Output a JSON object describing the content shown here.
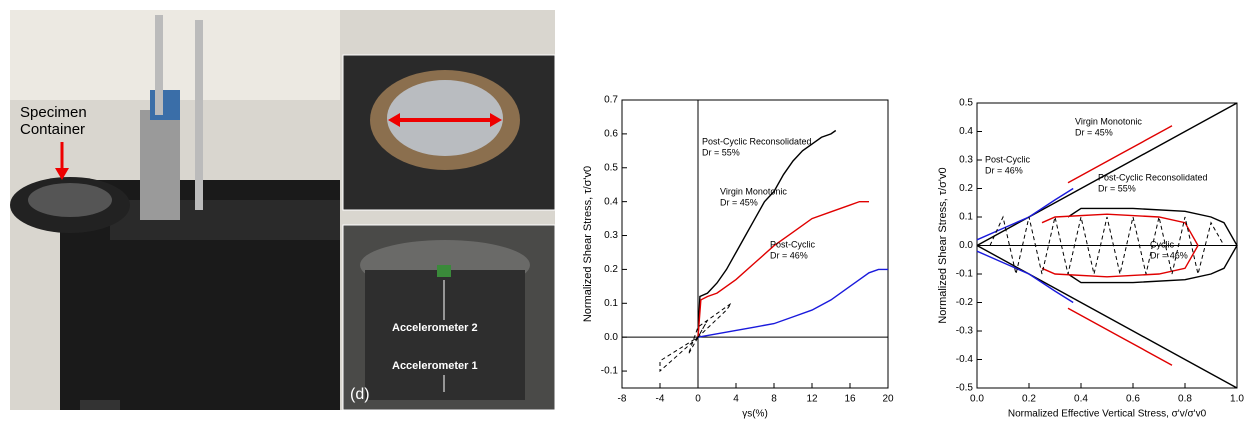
{
  "photos": {
    "labels": {
      "container": "Specimen Container",
      "acc2": "Accelerometer 2",
      "acc1": "Accelerometer 1",
      "panel": "(d)"
    }
  },
  "chart_data": [
    {
      "type": "line",
      "ylabel": "Normalized Shear Stress, τ/σ'v0",
      "xlabel": "γs(%)",
      "xlim": [
        -8,
        20
      ],
      "xticks": [
        -8,
        -4,
        0,
        4,
        8,
        12,
        16,
        20
      ],
      "ylim": [
        -0.15,
        0.7
      ],
      "yticks": [
        -0.1,
        {
          "value": 0,
          "label": "0.0"
        },
        0.1,
        0.2,
        0.3,
        0.4,
        0.5,
        0.6,
        0.7
      ],
      "annotations": [
        {
          "text": "Post-Cyclic Reconsolidated",
          "sub": "Dr = 55%"
        },
        {
          "text": "Virgin Monotonic",
          "sub": "Dr = 45%"
        },
        {
          "text": "Post-Cyclic",
          "sub": "Dr = 46%"
        }
      ],
      "series": [
        {
          "color": "#000000",
          "x": [
            0,
            0.2,
            1,
            2,
            3,
            4,
            5,
            6,
            7,
            8,
            9,
            10,
            11,
            12,
            13,
            14,
            14.5
          ],
          "values": [
            0,
            0.12,
            0.13,
            0.16,
            0.2,
            0.25,
            0.3,
            0.35,
            0.4,
            0.43,
            0.48,
            0.52,
            0.55,
            0.57,
            0.59,
            0.6,
            0.61
          ]
        },
        {
          "color": "#e00000",
          "x": [
            0,
            0.3,
            1,
            2,
            4,
            6,
            8,
            10,
            12,
            14,
            16,
            17,
            18
          ],
          "values": [
            0,
            0.11,
            0.12,
            0.13,
            0.17,
            0.22,
            0.27,
            0.31,
            0.35,
            0.37,
            0.39,
            0.4,
            0.4
          ]
        },
        {
          "color": "#1a1adc",
          "x": [
            0,
            2,
            4,
            6,
            8,
            10,
            12,
            14,
            16,
            17,
            18,
            19,
            20
          ],
          "values": [
            0,
            0.01,
            0.02,
            0.03,
            0.04,
            0.06,
            0.08,
            0.11,
            0.15,
            0.17,
            0.19,
            0.2,
            0.2
          ]
        },
        {
          "color": "#000000",
          "dash": true,
          "x": [
            0,
            -2,
            -4,
            -4,
            0,
            3,
            3.5,
            0,
            -1,
            0,
            1,
            0
          ],
          "values": [
            0,
            -0.05,
            -0.1,
            -0.07,
            0,
            0.08,
            0.1,
            0.03,
            -0.05,
            0,
            0.05,
            0
          ]
        }
      ]
    },
    {
      "type": "line",
      "ylabel": "Normalized Shear Stress, τ/σ'v0",
      "xlabel": "Normalized Effective Vertical Stress, σ'v/σ'v0",
      "xlim": [
        0,
        1
      ],
      "xticks": [
        {
          "value": 0,
          "label": "0.0"
        },
        0.2,
        0.4,
        0.6,
        0.8,
        {
          "value": 1,
          "label": "1.0"
        }
      ],
      "ylim": [
        -0.5,
        0.5
      ],
      "yticks": [
        -0.5,
        -0.4,
        -0.3,
        -0.2,
        -0.1,
        {
          "value": 0,
          "label": "0.0"
        },
        0.1,
        0.2,
        0.3,
        0.4,
        0.5
      ],
      "annotations": [
        {
          "text": "Post-Cyclic",
          "sub": "Dr = 46%"
        },
        {
          "text": "Virgin Monotonic",
          "sub": "Dr = 45%"
        },
        {
          "text": "Post-Cyclic Reconsolidated",
          "sub": "Dr = 55%"
        },
        {
          "text": "Cyclic",
          "sub": "Dr = 46%"
        }
      ],
      "series": [
        {
          "color": "#000000",
          "x": [
            0,
            0.2,
            0.4,
            0.6,
            0.8,
            0.9,
            1
          ],
          "values": [
            0,
            0.1,
            0.2,
            0.3,
            0.4,
            0.45,
            0.5
          ]
        },
        {
          "color": "#000000",
          "x": [
            0,
            0.2,
            0.4,
            0.6,
            0.8,
            0.9,
            1
          ],
          "values": [
            0,
            -0.1,
            -0.2,
            -0.3,
            -0.4,
            -0.45,
            -0.5
          ]
        },
        {
          "color": "#000000",
          "x": [
            0.35,
            0.4,
            0.6,
            0.8,
            0.9,
            0.95,
            1,
            0.95,
            0.9,
            0.8,
            0.6,
            0.4,
            0.35
          ],
          "values": [
            0.1,
            0.13,
            0.13,
            0.12,
            0.1,
            0.08,
            0,
            -0.08,
            -0.1,
            -0.12,
            -0.13,
            -0.13,
            -0.1
          ]
        },
        {
          "color": "#e00000",
          "x": [
            0.35,
            0.45,
            0.55,
            0.65,
            0.75
          ],
          "values": [
            0.22,
            0.27,
            0.32,
            0.37,
            0.42
          ]
        },
        {
          "color": "#e00000",
          "x": [
            0.35,
            0.45,
            0.55,
            0.65,
            0.75
          ],
          "values": [
            -0.22,
            -0.27,
            -0.32,
            -0.37,
            -0.42
          ]
        },
        {
          "color": "#e00000",
          "x": [
            0.25,
            0.3,
            0.5,
            0.7,
            0.8,
            0.85,
            0.8,
            0.7,
            0.5,
            0.3,
            0.25
          ],
          "values": [
            0.08,
            0.1,
            0.11,
            0.1,
            0.08,
            0,
            -0.08,
            -0.1,
            -0.11,
            -0.1,
            -0.08
          ]
        },
        {
          "color": "#1a1adc",
          "x": [
            0,
            0.1,
            0.2,
            0.3,
            0.37
          ],
          "values": [
            0.02,
            0.06,
            0.1,
            0.16,
            0.2
          ]
        },
        {
          "color": "#1a1adc",
          "x": [
            0,
            0.1,
            0.2,
            0.3,
            0.37
          ],
          "values": [
            -0.02,
            -0.06,
            -0.1,
            -0.16,
            -0.2
          ]
        },
        {
          "color": "#000000",
          "dash": true,
          "x": [
            0.05,
            0.1,
            0.15,
            0.2,
            0.25,
            0.3,
            0.35,
            0.4,
            0.45,
            0.5,
            0.55,
            0.6,
            0.65,
            0.7,
            0.75,
            0.8,
            0.85,
            0.9,
            0.95
          ],
          "values": [
            0,
            0.1,
            -0.1,
            0.1,
            -0.1,
            0.1,
            -0.1,
            0.1,
            -0.1,
            0.1,
            -0.1,
            0.1,
            -0.1,
            0.1,
            -0.1,
            0.1,
            -0.1,
            0.08,
            0
          ]
        }
      ]
    }
  ]
}
